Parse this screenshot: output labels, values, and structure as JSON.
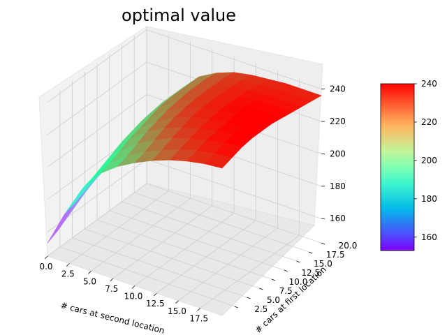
{
  "chart_data": {
    "type": "surface3d",
    "title": "optimal value",
    "xlabel": "# cars at second location",
    "ylabel": "# cars at first location",
    "zlabel": "",
    "xlim": [
      0,
      20
    ],
    "ylim": [
      0,
      20
    ],
    "zlim": [
      145,
      242
    ],
    "x_ticks": [
      "0.0",
      "2.5",
      "5.0",
      "7.5",
      "10.0",
      "12.5",
      "15.0",
      "17.5"
    ],
    "y_ticks": [
      "2.5",
      "5.0",
      "7.5",
      "10.0",
      "12.5",
      "15.0",
      "17.5",
      "20.0"
    ],
    "z_ticks": [
      "160",
      "180",
      "200",
      "220",
      "240"
    ],
    "colormap": "rainbow",
    "colorbar": {
      "min": 153,
      "max": 240,
      "ticks": [
        "160",
        "180",
        "200",
        "220",
        "240"
      ]
    },
    "surface": {
      "x": [
        0,
        2,
        4,
        6,
        8,
        10,
        12,
        14,
        16,
        18,
        20
      ],
      "y": [
        0,
        2,
        4,
        6,
        8,
        10,
        12,
        14,
        16,
        18,
        20
      ],
      "z": [
        [
          153,
          175,
          194,
          207,
          215,
          221,
          226,
          230,
          233,
          235,
          236
        ],
        [
          156,
          177,
          196,
          209,
          217,
          223,
          228,
          232,
          235,
          237,
          238
        ],
        [
          160,
          180,
          199,
          212,
          220,
          226,
          231,
          234,
          237,
          239,
          240
        ],
        [
          164,
          183,
          202,
          215,
          223,
          229,
          233,
          236,
          238,
          240,
          241
        ],
        [
          168,
          187,
          205,
          217,
          225,
          231,
          235,
          237,
          239,
          240,
          241
        ],
        [
          171,
          190,
          207,
          219,
          227,
          232,
          236,
          238,
          240,
          241,
          241
        ],
        [
          173,
          192,
          209,
          221,
          228,
          233,
          236,
          238,
          240,
          240,
          240
        ],
        [
          175,
          193,
          210,
          222,
          229,
          233,
          236,
          238,
          239,
          239,
          239
        ],
        [
          176,
          194,
          211,
          222,
          229,
          233,
          236,
          237,
          238,
          238,
          238
        ],
        [
          177,
          195,
          211,
          222,
          229,
          233,
          235,
          236,
          237,
          237,
          237
        ],
        [
          177,
          195,
          211,
          222,
          228,
          232,
          234,
          235,
          236,
          236,
          236
        ]
      ]
    }
  }
}
